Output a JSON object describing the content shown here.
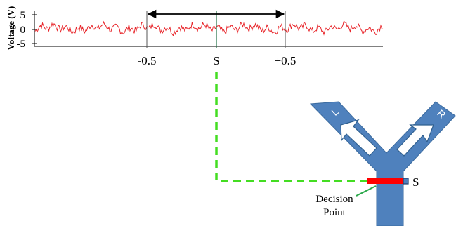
{
  "signal_plot": {
    "ylabel": "Voltage (V)",
    "y_ticks": [
      "5",
      "0",
      "-5"
    ],
    "window_labels": {
      "left": "-0.5",
      "center": "S",
      "right": "+0.5"
    },
    "trace_color": "#e8272c"
  },
  "maze": {
    "left_arm_label": "L",
    "right_arm_label": "R",
    "sensor_label": "S",
    "decision_label_line1": "Decision",
    "decision_label_line2": "Point",
    "maze_color": "#4f81bd",
    "decision_bar_color": "#ff0000",
    "connector_color": "#44dd22",
    "pointer_color": "#2aa84a"
  }
}
